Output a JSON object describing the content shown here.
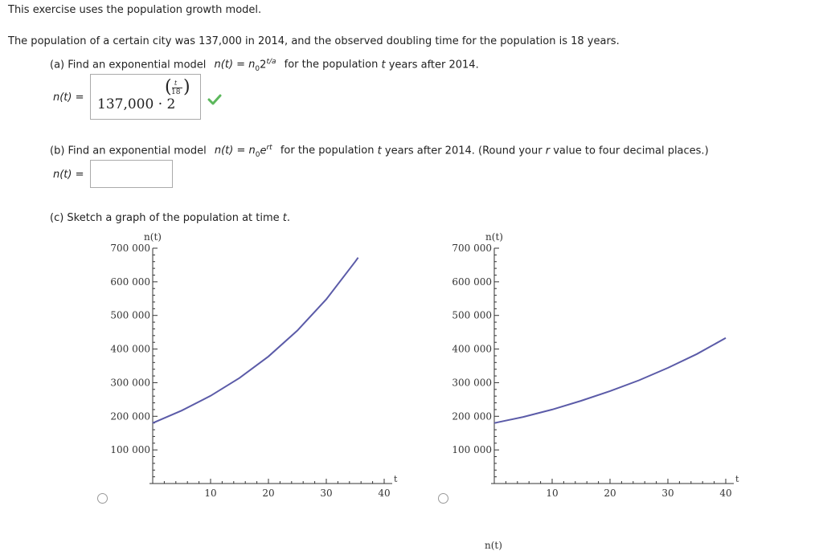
{
  "intro": "This exercise uses the population growth model.",
  "problem": "The population of a certain city was 137,000 in 2014, and the observed doubling time for the population is 18 years.",
  "part_a": {
    "label": "(a) Find an exponential model",
    "model": "n(t) = n",
    "model_sub": "0",
    "model_base": "2",
    "model_exp": "t/a",
    "suffix_1": "for the population",
    "var_t": "t",
    "suffix_2": "years after 2014.",
    "answer_label": "n(t) =",
    "answer_main": "137,000 · 2",
    "answer_exp_num": "t",
    "answer_exp_den": "18",
    "check_icon": "check-mark-icon"
  },
  "part_b": {
    "label": "(b) Find an exponential model",
    "model": "n(t) = n",
    "model_sub": "0",
    "model_base": "e",
    "model_exp": "rt",
    "suffix_1": "for the population",
    "var_t": "t",
    "suffix_2": "years after 2014. (Round your",
    "var_r": "r",
    "suffix_3": "value to four decimal places.)",
    "answer_label": "n(t) =",
    "answer_value": ""
  },
  "part_c": {
    "label": "(c) Sketch a graph of the population at time",
    "var_t": "t",
    "var_t_end": "."
  },
  "chart_data": [
    {
      "type": "line",
      "ylabel": "n(t)",
      "xlabel": "t",
      "xlim": [
        0,
        40
      ],
      "ylim": [
        0,
        700000
      ],
      "x_ticks": [
        "10",
        "20",
        "30",
        "40"
      ],
      "y_ticks": [
        "100 000",
        "200 000",
        "300 000",
        "400 000",
        "500 000",
        "600 000",
        "700 000"
      ],
      "series": [
        {
          "values": [
            [
              0,
              180000
            ],
            [
              5,
              217000
            ],
            [
              10,
              261000
            ],
            [
              15,
              314000
            ],
            [
              20,
              378000
            ],
            [
              25,
              455000
            ],
            [
              30,
              548000
            ],
            [
              35,
              660000
            ],
            [
              35.5,
              672000
            ]
          ]
        }
      ],
      "line_color": "#5b5ba8"
    },
    {
      "type": "line",
      "ylabel": "n(t)",
      "xlabel": "t",
      "xlim": [
        0,
        40
      ],
      "ylim": [
        0,
        700000
      ],
      "x_ticks": [
        "10",
        "20",
        "30",
        "40"
      ],
      "y_ticks": [
        "100 000",
        "200 000",
        "300 000",
        "400 000",
        "500 000",
        "600 000",
        "700 000"
      ],
      "series": [
        {
          "values": [
            [
              0,
              180000
            ],
            [
              5,
              198000
            ],
            [
              10,
              220000
            ],
            [
              15,
              246000
            ],
            [
              20,
              275000
            ],
            [
              25,
              307000
            ],
            [
              30,
              344000
            ],
            [
              35,
              385000
            ],
            [
              40,
              433000
            ]
          ]
        }
      ],
      "line_color": "#5b5ba8"
    }
  ],
  "next_chart_label": "n(t)"
}
